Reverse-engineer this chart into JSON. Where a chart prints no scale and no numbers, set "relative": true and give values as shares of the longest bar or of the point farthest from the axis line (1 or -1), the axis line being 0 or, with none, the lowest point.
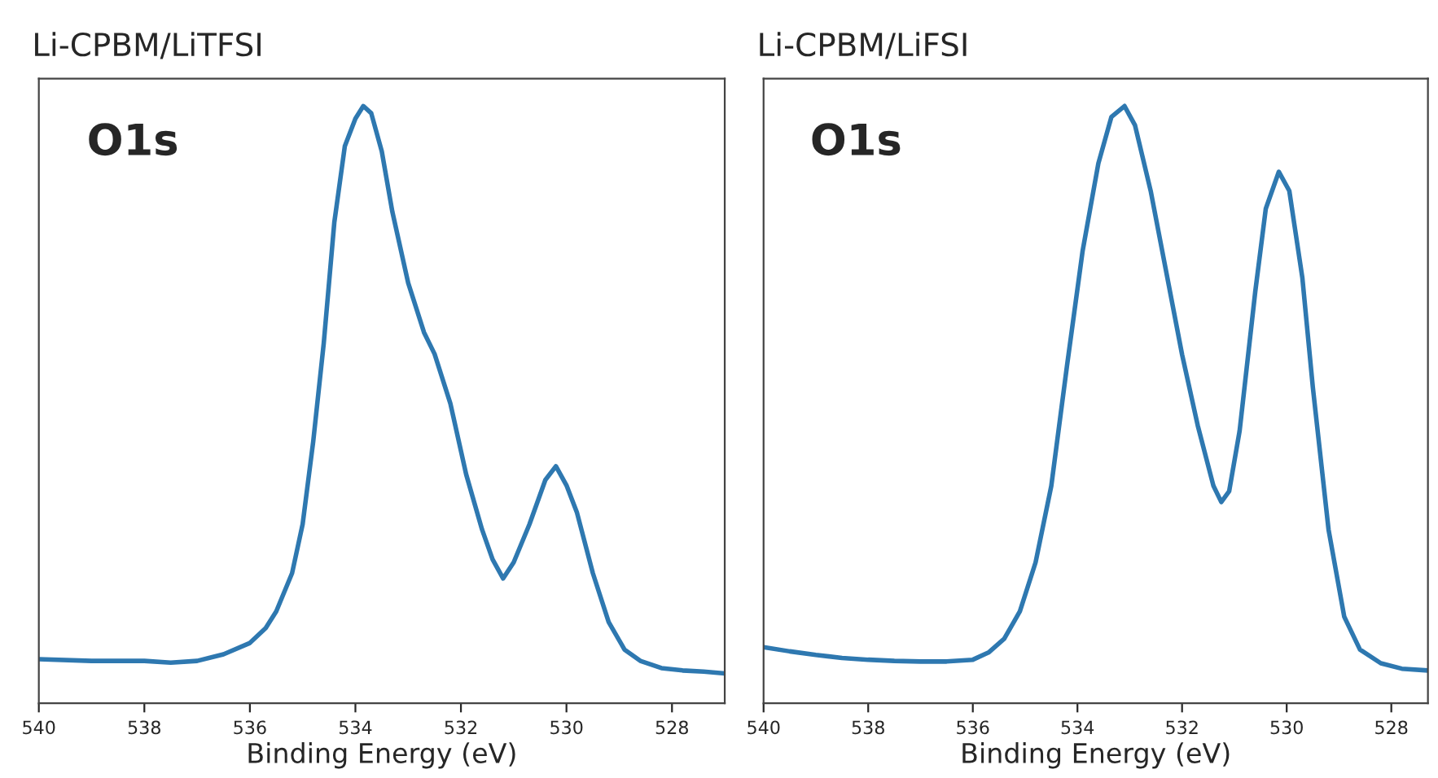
{
  "chart_data": [
    {
      "type": "line",
      "title": "Li-CPBM/LiTFSI",
      "xlabel": "Binding Energy (eV)",
      "annotations": [
        "O1s"
      ],
      "relative": true,
      "tick_labels": "x",
      "xlim": [
        540,
        527
      ],
      "xticks": [
        540,
        538,
        536,
        534,
        532,
        530,
        528
      ],
      "grid": false,
      "series": [
        {
          "color": "#2e78b0",
          "x": [
            540,
            539,
            538,
            537.5,
            537,
            536.5,
            536,
            535.7,
            535.5,
            535.2,
            535,
            534.8,
            534.6,
            534.4,
            534.2,
            534.0,
            533.85,
            533.7,
            533.5,
            533.3,
            533.0,
            532.7,
            532.5,
            532.2,
            531.9,
            531.6,
            531.4,
            531.2,
            531.0,
            530.7,
            530.4,
            530.2,
            530.0,
            529.8,
            529.5,
            529.2,
            528.9,
            528.6,
            528.2,
            527.8,
            527.4,
            527.0
          ],
          "values": [
            0.074,
            0.071,
            0.071,
            0.068,
            0.071,
            0.082,
            0.101,
            0.126,
            0.154,
            0.218,
            0.3,
            0.438,
            0.603,
            0.805,
            0.933,
            0.979,
            1.0,
            0.988,
            0.924,
            0.823,
            0.704,
            0.621,
            0.585,
            0.502,
            0.383,
            0.291,
            0.241,
            0.209,
            0.236,
            0.3,
            0.374,
            0.397,
            0.365,
            0.319,
            0.218,
            0.136,
            0.09,
            0.071,
            0.059,
            0.055,
            0.053,
            0.05
          ]
        }
      ]
    },
    {
      "type": "line",
      "title": "Li-CPBM/LiFSI",
      "xlabel": "Binding Energy (eV)",
      "annotations": [
        "O1s"
      ],
      "relative": true,
      "tick_labels": "x",
      "xlim": [
        540,
        527.3
      ],
      "xticks": [
        540,
        538,
        536,
        534,
        532,
        530,
        528
      ],
      "grid": false,
      "series": [
        {
          "color": "#2e78b0",
          "x": [
            540,
            539.5,
            539,
            538.5,
            538,
            537.5,
            537,
            536.5,
            536,
            535.7,
            535.4,
            535.1,
            534.8,
            534.5,
            534.2,
            533.9,
            533.6,
            533.35,
            533.1,
            532.9,
            532.6,
            532.3,
            532.0,
            531.7,
            531.4,
            531.25,
            531.1,
            530.9,
            530.6,
            530.4,
            530.15,
            529.95,
            529.7,
            529.5,
            529.2,
            528.9,
            528.6,
            528.2,
            527.8,
            527.3
          ],
          "values": [
            0.094,
            0.087,
            0.081,
            0.076,
            0.073,
            0.071,
            0.07,
            0.07,
            0.073,
            0.085,
            0.108,
            0.154,
            0.236,
            0.364,
            0.565,
            0.758,
            0.904,
            0.982,
            1.0,
            0.968,
            0.858,
            0.721,
            0.584,
            0.465,
            0.364,
            0.337,
            0.355,
            0.456,
            0.69,
            0.828,
            0.89,
            0.858,
            0.712,
            0.529,
            0.291,
            0.145,
            0.09,
            0.067,
            0.058,
            0.055
          ]
        }
      ]
    }
  ]
}
